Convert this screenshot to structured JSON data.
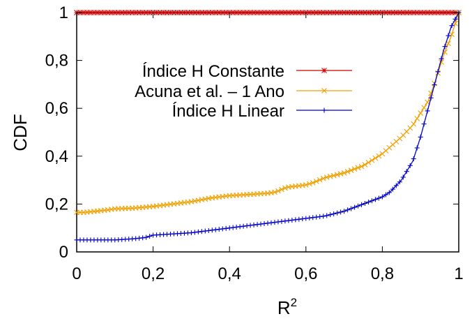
{
  "chart_data": {
    "type": "line",
    "xlabel": "R",
    "xlabel_superscript": "2",
    "ylabel": "CDF",
    "xlim": [
      0,
      1
    ],
    "ylim": [
      0,
      1
    ],
    "grid": false,
    "legend_position": "top-right",
    "x_ticks": [
      "0",
      "0,2",
      "0,4",
      "0,6",
      "0,8",
      "1"
    ],
    "y_ticks": [
      "0",
      "0,2",
      "0,4",
      "0,6",
      "0,8",
      "1"
    ],
    "series": [
      {
        "name": "Índice H Constante",
        "color": "#cc0000",
        "marker": "asterisk",
        "x": [
          0,
          1
        ],
        "y": [
          1,
          1
        ]
      },
      {
        "name": "Acuna et al. – 1 Ano",
        "color": "#f0a000",
        "marker": "x",
        "x": [
          0,
          0.02,
          0.05,
          0.08,
          0.1,
          0.15,
          0.2,
          0.25,
          0.3,
          0.35,
          0.4,
          0.45,
          0.5,
          0.52,
          0.55,
          0.6,
          0.62,
          0.65,
          0.7,
          0.75,
          0.8,
          0.85,
          0.88,
          0.9,
          0.92,
          0.94,
          0.96,
          0.98,
          1.0
        ],
        "y": [
          0.165,
          0.165,
          0.17,
          0.175,
          0.18,
          0.183,
          0.19,
          0.2,
          0.21,
          0.225,
          0.235,
          0.24,
          0.245,
          0.25,
          0.27,
          0.28,
          0.29,
          0.31,
          0.33,
          0.36,
          0.41,
          0.48,
          0.53,
          0.58,
          0.63,
          0.72,
          0.82,
          0.9,
          1.0
        ]
      },
      {
        "name": "Índice H Linear",
        "color": "#0000cc",
        "marker": "plus",
        "x": [
          0,
          0.05,
          0.1,
          0.15,
          0.18,
          0.2,
          0.25,
          0.3,
          0.35,
          0.4,
          0.45,
          0.5,
          0.55,
          0.6,
          0.65,
          0.7,
          0.75,
          0.8,
          0.82,
          0.85,
          0.88,
          0.9,
          0.92,
          0.94,
          0.96,
          0.98,
          1.0
        ],
        "y": [
          0.05,
          0.05,
          0.05,
          0.055,
          0.06,
          0.07,
          0.075,
          0.08,
          0.09,
          0.1,
          0.11,
          0.12,
          0.13,
          0.14,
          0.15,
          0.17,
          0.2,
          0.23,
          0.25,
          0.3,
          0.38,
          0.48,
          0.6,
          0.72,
          0.84,
          0.94,
          1.0
        ]
      }
    ]
  }
}
